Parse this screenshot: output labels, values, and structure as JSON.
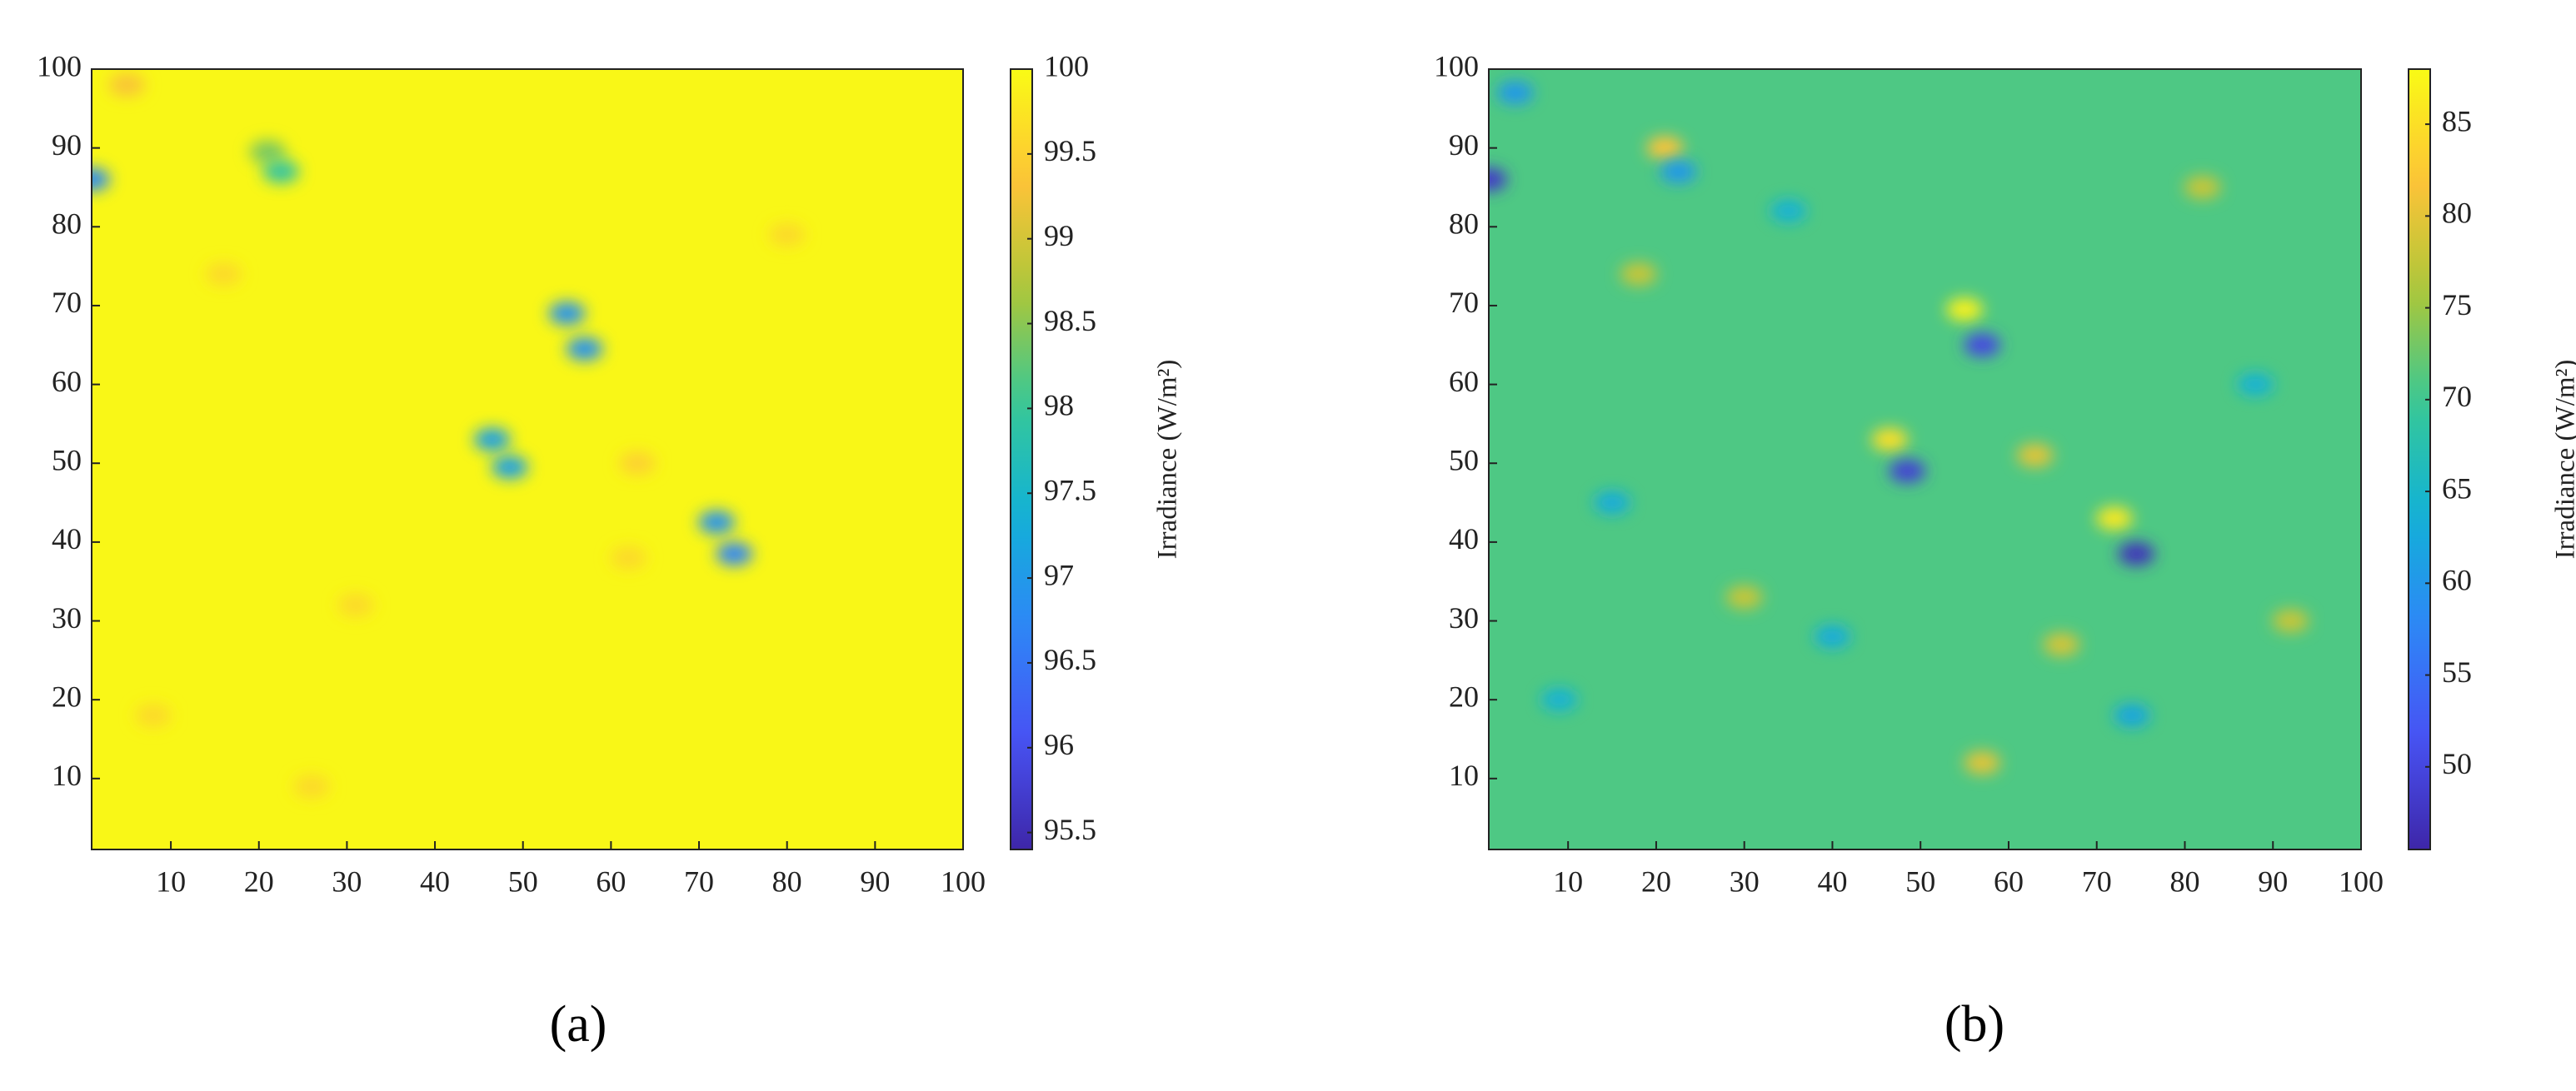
{
  "chart_data": [
    {
      "type": "heatmap",
      "caption": "(a)",
      "colorbar_label": "Irradiance (W/m²)",
      "colormap": "parula",
      "xlim": [
        1,
        100
      ],
      "ylim": [
        1,
        100
      ],
      "xticks": [
        10,
        20,
        30,
        40,
        50,
        60,
        70,
        80,
        90,
        100
      ],
      "yticks": [
        10,
        20,
        30,
        40,
        50,
        60,
        70,
        80,
        90,
        100
      ],
      "clim": [
        95.4,
        100
      ],
      "cticks": [
        95.5,
        96,
        96.5,
        97,
        97.5,
        98,
        98.5,
        99,
        99.5,
        100
      ],
      "background": 99.95,
      "spots": [
        {
          "x": 1,
          "y": 86,
          "value": 96.8
        },
        {
          "x": 21,
          "y": 89.5,
          "value": 98.4
        },
        {
          "x": 22.5,
          "y": 87,
          "value": 97.9
        },
        {
          "x": 55,
          "y": 69,
          "value": 96.9
        },
        {
          "x": 57,
          "y": 64.5,
          "value": 96.9
        },
        {
          "x": 46.5,
          "y": 53,
          "value": 97.1
        },
        {
          "x": 48.5,
          "y": 49.5,
          "value": 97.1
        },
        {
          "x": 72,
          "y": 42.5,
          "value": 96.9
        },
        {
          "x": 74,
          "y": 38.5,
          "value": 96.7
        },
        {
          "x": 5,
          "y": 98,
          "value": 99.3
        },
        {
          "x": 63,
          "y": 50,
          "value": 99.5
        },
        {
          "x": 31,
          "y": 32,
          "value": 99.6
        },
        {
          "x": 26,
          "y": 9,
          "value": 99.6
        },
        {
          "x": 16,
          "y": 74,
          "value": 99.6
        },
        {
          "x": 80,
          "y": 79,
          "value": 99.6
        },
        {
          "x": 8,
          "y": 18,
          "value": 99.6
        },
        {
          "x": 62,
          "y": 38,
          "value": 99.6
        }
      ]
    },
    {
      "type": "heatmap",
      "caption": "(b)",
      "colorbar_label": "Irradiance (W/m²)",
      "colormap": "parula",
      "xlim": [
        1,
        100
      ],
      "ylim": [
        1,
        100
      ],
      "xticks": [
        10,
        20,
        30,
        40,
        50,
        60,
        70,
        80,
        90,
        100
      ],
      "yticks": [
        10,
        20,
        30,
        40,
        50,
        60,
        70,
        80,
        90,
        100
      ],
      "clim": [
        45.5,
        88
      ],
      "cticks": [
        50,
        55,
        60,
        65,
        70,
        75,
        80,
        85
      ],
      "background": 71,
      "spots": [
        {
          "x": 4,
          "y": 97,
          "value": 60
        },
        {
          "x": 1,
          "y": 86,
          "value": 48
        },
        {
          "x": 21,
          "y": 90,
          "value": 82
        },
        {
          "x": 22.5,
          "y": 87,
          "value": 60
        },
        {
          "x": 55,
          "y": 69.5,
          "value": 87
        },
        {
          "x": 57,
          "y": 65,
          "value": 50
        },
        {
          "x": 46.5,
          "y": 53,
          "value": 85
        },
        {
          "x": 48.5,
          "y": 49,
          "value": 49
        },
        {
          "x": 72,
          "y": 43,
          "value": 86
        },
        {
          "x": 74.5,
          "y": 38.5,
          "value": 47
        },
        {
          "x": 63,
          "y": 51,
          "value": 80
        },
        {
          "x": 30,
          "y": 33,
          "value": 78
        },
        {
          "x": 57,
          "y": 12,
          "value": 80
        },
        {
          "x": 74,
          "y": 18,
          "value": 62
        },
        {
          "x": 18,
          "y": 74,
          "value": 78
        },
        {
          "x": 40,
          "y": 28,
          "value": 63
        },
        {
          "x": 88,
          "y": 60,
          "value": 64
        },
        {
          "x": 15,
          "y": 45,
          "value": 63
        },
        {
          "x": 66,
          "y": 27,
          "value": 79
        },
        {
          "x": 35,
          "y": 82,
          "value": 64
        },
        {
          "x": 82,
          "y": 85,
          "value": 78
        },
        {
          "x": 9,
          "y": 20,
          "value": 64
        },
        {
          "x": 92,
          "y": 30,
          "value": 78
        }
      ]
    }
  ]
}
